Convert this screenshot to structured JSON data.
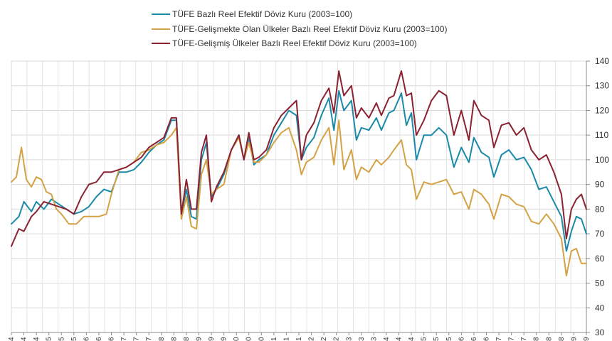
{
  "chart_data": {
    "type": "line",
    "grid": true,
    "legend_position": "top-center",
    "ylim": [
      30,
      140
    ],
    "yticks": [
      30,
      40,
      50,
      60,
      70,
      80,
      90,
      100,
      110,
      120,
      130,
      140
    ],
    "x_count": 183,
    "x_tick_labels": [
      "4",
      "4",
      "4",
      "5",
      "5",
      "5",
      "6",
      "6",
      "6",
      "7",
      "7",
      "7",
      "8",
      "8",
      "8",
      "9",
      "9",
      "9",
      "0",
      "0",
      "0",
      "1",
      "1",
      "1",
      "2",
      "2",
      "2",
      "3",
      "3",
      "3",
      "4",
      "4",
      "4",
      "5",
      "5",
      "5",
      "6",
      "6",
      "6",
      "7",
      "7",
      "7",
      "8",
      "8",
      "8",
      "9",
      "9"
    ],
    "series": [
      {
        "name": "TÜFE  Bazlı Reel Efektif Döviz Kuru (2003=100)",
        "color": "#1a8aa8",
        "keypoints": [
          [
            0,
            74
          ],
          [
            3,
            77
          ],
          [
            5,
            83
          ],
          [
            8,
            79
          ],
          [
            10,
            83
          ],
          [
            13,
            80
          ],
          [
            16,
            84
          ],
          [
            19,
            82
          ],
          [
            22,
            80
          ],
          [
            25,
            78
          ],
          [
            28,
            79
          ],
          [
            31,
            81
          ],
          [
            34,
            85
          ],
          [
            37,
            88
          ],
          [
            40,
            87
          ],
          [
            43,
            95
          ],
          [
            46,
            95
          ],
          [
            49,
            96
          ],
          [
            52,
            99
          ],
          [
            55,
            103
          ],
          [
            58,
            106
          ],
          [
            61,
            108
          ],
          [
            64,
            116
          ],
          [
            66,
            116
          ],
          [
            68,
            78
          ],
          [
            70,
            88
          ],
          [
            72,
            77
          ],
          [
            74,
            76
          ],
          [
            76,
            100
          ],
          [
            78,
            107
          ],
          [
            80,
            85
          ],
          [
            82,
            88
          ],
          [
            85,
            94
          ],
          [
            88,
            104
          ],
          [
            91,
            110
          ],
          [
            93,
            100
          ],
          [
            95,
            109
          ],
          [
            97,
            98
          ],
          [
            99,
            100
          ],
          [
            102,
            102
          ],
          [
            105,
            110
          ],
          [
            108,
            115
          ],
          [
            111,
            120
          ],
          [
            114,
            118
          ],
          [
            116,
            100
          ],
          [
            118,
            105
          ],
          [
            121,
            109
          ],
          [
            124,
            118
          ],
          [
            127,
            125
          ],
          [
            129,
            112
          ],
          [
            131,
            128
          ],
          [
            133,
            120
          ],
          [
            136,
            124
          ],
          [
            138,
            108
          ],
          [
            140,
            113
          ],
          [
            143,
            112
          ],
          [
            146,
            117
          ],
          [
            148,
            112
          ],
          [
            151,
            119
          ],
          [
            153,
            120
          ],
          [
            156,
            127
          ],
          [
            158,
            114
          ],
          [
            160,
            119
          ],
          [
            162,
            100
          ],
          [
            165,
            110
          ],
          [
            168,
            110
          ],
          [
            171,
            113
          ],
          [
            174,
            110
          ],
          [
            177,
            97
          ],
          [
            180,
            105
          ],
          [
            183,
            99
          ],
          [
            185,
            109
          ],
          [
            188,
            103
          ],
          [
            191,
            101
          ],
          [
            193,
            93
          ],
          [
            196,
            102
          ],
          [
            199,
            104
          ],
          [
            202,
            100
          ],
          [
            205,
            101
          ],
          [
            208,
            96
          ],
          [
            211,
            88
          ],
          [
            214,
            89
          ],
          [
            217,
            83
          ],
          [
            220,
            77
          ],
          [
            222,
            63
          ],
          [
            224,
            71
          ],
          [
            226,
            77
          ],
          [
            228,
            76
          ],
          [
            230,
            70
          ]
        ]
      },
      {
        "name": "TÜFE-Gelişmekte Olan Ülkeler Bazlı Reel Efektif Döviz Kuru (2003=100)",
        "color": "#d4a245",
        "keypoints": [
          [
            0,
            91
          ],
          [
            2,
            93
          ],
          [
            4,
            105
          ],
          [
            6,
            92
          ],
          [
            8,
            89
          ],
          [
            10,
            93
          ],
          [
            12,
            92
          ],
          [
            14,
            87
          ],
          [
            16,
            86
          ],
          [
            18,
            80
          ],
          [
            20,
            78
          ],
          [
            23,
            74
          ],
          [
            26,
            74
          ],
          [
            29,
            77
          ],
          [
            32,
            77
          ],
          [
            35,
            77
          ],
          [
            38,
            78
          ],
          [
            40,
            86
          ],
          [
            43,
            96
          ],
          [
            46,
            97
          ],
          [
            49,
            99
          ],
          [
            52,
            103
          ],
          [
            55,
            104
          ],
          [
            58,
            106
          ],
          [
            61,
            107
          ],
          [
            64,
            110
          ],
          [
            66,
            113
          ],
          [
            68,
            76
          ],
          [
            70,
            85
          ],
          [
            72,
            73
          ],
          [
            74,
            72
          ],
          [
            76,
            94
          ],
          [
            78,
            100
          ],
          [
            80,
            86
          ],
          [
            82,
            88
          ],
          [
            85,
            90
          ],
          [
            88,
            104
          ],
          [
            91,
            109
          ],
          [
            93,
            100
          ],
          [
            95,
            107
          ],
          [
            97,
            99
          ],
          [
            99,
            99
          ],
          [
            102,
            102
          ],
          [
            105,
            107
          ],
          [
            108,
            111
          ],
          [
            111,
            113
          ],
          [
            114,
            104
          ],
          [
            116,
            94
          ],
          [
            118,
            99
          ],
          [
            121,
            101
          ],
          [
            124,
            108
          ],
          [
            127,
            113
          ],
          [
            129,
            98
          ],
          [
            131,
            116
          ],
          [
            133,
            96
          ],
          [
            136,
            104
          ],
          [
            138,
            92
          ],
          [
            140,
            97
          ],
          [
            143,
            95
          ],
          [
            146,
            100
          ],
          [
            148,
            98
          ],
          [
            151,
            101
          ],
          [
            153,
            104
          ],
          [
            156,
            108
          ],
          [
            158,
            98
          ],
          [
            160,
            96
          ],
          [
            162,
            84
          ],
          [
            165,
            91
          ],
          [
            168,
            90
          ],
          [
            171,
            91
          ],
          [
            174,
            92
          ],
          [
            177,
            86
          ],
          [
            180,
            87
          ],
          [
            183,
            80
          ],
          [
            185,
            88
          ],
          [
            188,
            86
          ],
          [
            191,
            82
          ],
          [
            193,
            76
          ],
          [
            196,
            86
          ],
          [
            199,
            85
          ],
          [
            202,
            82
          ],
          [
            205,
            81
          ],
          [
            208,
            75
          ],
          [
            211,
            74
          ],
          [
            214,
            78
          ],
          [
            217,
            74
          ],
          [
            220,
            68
          ],
          [
            222,
            53
          ],
          [
            224,
            63
          ],
          [
            226,
            64
          ],
          [
            228,
            58
          ],
          [
            230,
            58
          ]
        ]
      },
      {
        "name": "TÜFE-Gelişmiş Ülkeler Bazlı Reel Efektif Döviz Kuru (2003=100)",
        "color": "#8a2232",
        "keypoints": [
          [
            0,
            65
          ],
          [
            3,
            72
          ],
          [
            5,
            71
          ],
          [
            8,
            77
          ],
          [
            10,
            79
          ],
          [
            13,
            83
          ],
          [
            16,
            82
          ],
          [
            19,
            81
          ],
          [
            22,
            80
          ],
          [
            25,
            78
          ],
          [
            28,
            85
          ],
          [
            31,
            90
          ],
          [
            34,
            91
          ],
          [
            37,
            95
          ],
          [
            40,
            95
          ],
          [
            43,
            96
          ],
          [
            46,
            97
          ],
          [
            49,
            99
          ],
          [
            52,
            101
          ],
          [
            55,
            105
          ],
          [
            58,
            107
          ],
          [
            61,
            109
          ],
          [
            64,
            117
          ],
          [
            66,
            117
          ],
          [
            68,
            78
          ],
          [
            70,
            92
          ],
          [
            72,
            80
          ],
          [
            74,
            80
          ],
          [
            76,
            103
          ],
          [
            78,
            110
          ],
          [
            80,
            83
          ],
          [
            82,
            89
          ],
          [
            85,
            95
          ],
          [
            88,
            104
          ],
          [
            91,
            110
          ],
          [
            93,
            100
          ],
          [
            95,
            111
          ],
          [
            97,
            100
          ],
          [
            99,
            101
          ],
          [
            102,
            104
          ],
          [
            105,
            113
          ],
          [
            108,
            118
          ],
          [
            111,
            121
          ],
          [
            114,
            124
          ],
          [
            116,
            100
          ],
          [
            118,
            110
          ],
          [
            121,
            115
          ],
          [
            124,
            124
          ],
          [
            127,
            129
          ],
          [
            129,
            119
          ],
          [
            131,
            136
          ],
          [
            133,
            126
          ],
          [
            136,
            130
          ],
          [
            138,
            117
          ],
          [
            140,
            121
          ],
          [
            143,
            117
          ],
          [
            146,
            123
          ],
          [
            148,
            118
          ],
          [
            151,
            125
          ],
          [
            153,
            126
          ],
          [
            156,
            136
          ],
          [
            158,
            126
          ],
          [
            160,
            127
          ],
          [
            162,
            110
          ],
          [
            165,
            116
          ],
          [
            168,
            124
          ],
          [
            171,
            128
          ],
          [
            174,
            126
          ],
          [
            177,
            110
          ],
          [
            180,
            120
          ],
          [
            183,
            108
          ],
          [
            185,
            124
          ],
          [
            188,
            118
          ],
          [
            191,
            116
          ],
          [
            193,
            105
          ],
          [
            196,
            114
          ],
          [
            199,
            115
          ],
          [
            202,
            110
          ],
          [
            205,
            113
          ],
          [
            208,
            104
          ],
          [
            211,
            100
          ],
          [
            214,
            102
          ],
          [
            217,
            95
          ],
          [
            220,
            86
          ],
          [
            222,
            68
          ],
          [
            224,
            80
          ],
          [
            226,
            84
          ],
          [
            228,
            86
          ],
          [
            230,
            80
          ]
        ]
      }
    ]
  }
}
